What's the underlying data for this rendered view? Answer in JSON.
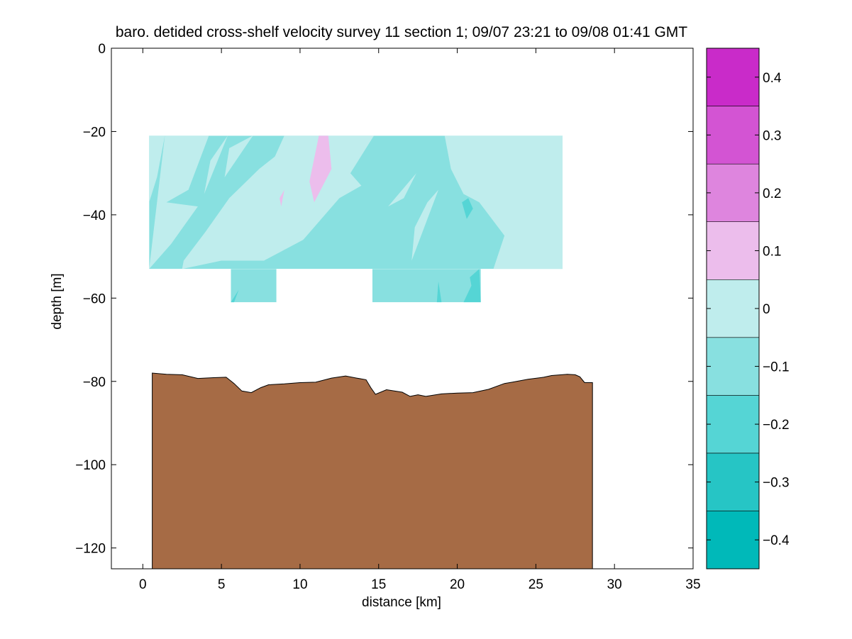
{
  "chart_data": {
    "type": "contour",
    "title": "baro. detided cross-shelf velocity survey 11 section 1; 09/07 23:21 to 09/08 01:41 GMT",
    "xlabel": "distance [km]",
    "ylabel": "depth [m]",
    "xlim": [
      -2,
      35
    ],
    "ylim": [
      -125,
      0
    ],
    "xticks": [
      0,
      5,
      10,
      15,
      20,
      25,
      30,
      35
    ],
    "yticks": [
      0,
      -20,
      -40,
      -60,
      -80,
      -100,
      -120
    ],
    "grid": false,
    "colorbar": {
      "range": [
        -0.45,
        0.45
      ],
      "levels": [
        -0.45,
        -0.35,
        -0.25,
        -0.15,
        -0.05,
        0.05,
        0.15,
        0.25,
        0.35,
        0.45
      ],
      "colors": [
        "#00b9b9",
        "#26c5c5",
        "#55d5d5",
        "#88e0e0",
        "#bfeded",
        "#ecbdec",
        "#de85de",
        "#d354d3",
        "#c92bc9",
        "#bf00bf"
      ],
      "ticks": [
        -0.4,
        -0.3,
        -0.2,
        -0.1,
        0,
        0.1,
        0.2,
        0.3,
        0.4
      ],
      "tick_labels": [
        "−0.4",
        "−0.3",
        "−0.2",
        "−0.1",
        "0",
        "0.1",
        "0.2",
        "0.3",
        "0.4"
      ]
    },
    "velocity_section": {
      "upper_block": {
        "x": [
          0.4,
          26.7
        ],
        "depth": [
          -21,
          -53
        ]
      },
      "lower_blocks": [
        {
          "x": [
            5.6,
            8.5
          ],
          "depth": [
            -53,
            -61
          ]
        },
        {
          "x": [
            14.6,
            21.5
          ],
          "depth": [
            -53,
            -61
          ]
        }
      ],
      "positive_regions": [
        [
          [
            0.4,
            -21
          ],
          [
            1.4,
            -21
          ],
          [
            0.9,
            -31
          ],
          [
            0.4,
            -37
          ]
        ],
        [
          [
            1.4,
            -21
          ],
          [
            4.2,
            -21
          ],
          [
            2.9,
            -34
          ],
          [
            1.5,
            -37
          ],
          [
            3.5,
            -38
          ],
          [
            1.8,
            -47
          ],
          [
            0.4,
            -53
          ]
        ],
        [
          [
            4.3,
            -27
          ],
          [
            5.4,
            -21
          ],
          [
            3.9,
            -35
          ]
        ],
        [
          [
            5.5,
            -24
          ],
          [
            7.0,
            -21
          ],
          [
            5.2,
            -31
          ]
        ],
        [
          [
            9.0,
            -21
          ],
          [
            14.7,
            -21
          ],
          [
            13.2,
            -30
          ],
          [
            13.9,
            -33
          ],
          [
            12.5,
            -36
          ],
          [
            10.2,
            -46
          ],
          [
            7.7,
            -51
          ],
          [
            5.0,
            -51
          ],
          [
            2.5,
            -53
          ],
          [
            2.6,
            -51
          ],
          [
            4.0,
            -44
          ],
          [
            5.5,
            -36
          ],
          [
            7.4,
            -29
          ],
          [
            8.4,
            -26
          ]
        ],
        [
          [
            15.6,
            -38
          ],
          [
            17.4,
            -30
          ],
          [
            16.6,
            -36
          ]
        ],
        [
          [
            19.2,
            -21
          ],
          [
            26.7,
            -21
          ],
          [
            26.7,
            -53
          ],
          [
            22.3,
            -53
          ],
          [
            23.0,
            -45
          ],
          [
            21.4,
            -37
          ],
          [
            20.4,
            -35
          ],
          [
            19.6,
            -29
          ]
        ],
        [
          [
            18.1,
            -37
          ],
          [
            18.8,
            -34
          ],
          [
            17.1,
            -51
          ],
          [
            17.3,
            -43
          ]
        ]
      ],
      "level_0_1_regions": [
        [
          [
            11.2,
            -21
          ],
          [
            11.8,
            -21
          ],
          [
            12.0,
            -29
          ],
          [
            10.9,
            -37
          ],
          [
            10.6,
            -32
          ]
        ],
        [
          [
            8.7,
            -36
          ],
          [
            9.0,
            -34
          ],
          [
            8.8,
            -38
          ]
        ]
      ],
      "negative_patches": [
        {
          "points": [
            [
              20.3,
              -37
            ],
            [
              20.7,
              -36
            ],
            [
              21.0,
              -38.5
            ],
            [
              20.6,
              -41
            ]
          ],
          "level": -0.2
        },
        {
          "points": [
            [
              5.6,
              -61
            ],
            [
              6.1,
              -58
            ],
            [
              5.8,
              -61
            ]
          ],
          "level": -0.2
        },
        {
          "points": [
            [
              18.7,
              -61
            ],
            [
              18.8,
              -56
            ],
            [
              19.0,
              -61
            ]
          ],
          "level": -0.2
        },
        {
          "points": [
            [
              20.8,
              -55
            ],
            [
              21.4,
              -53
            ],
            [
              21.5,
              -61
            ],
            [
              20.4,
              -61
            ],
            [
              20.9,
              -57
            ]
          ],
          "level": -0.2
        }
      ]
    },
    "bathymetry": {
      "color": "#a66b45",
      "x": [
        0.6,
        1.5,
        2.5,
        3.5,
        4.5,
        5.3,
        5.8,
        6.3,
        6.9,
        7.5,
        8.0,
        9.0,
        10.0,
        11.0,
        12.0,
        12.9,
        13.6,
        14.2,
        14.5,
        14.8,
        15.5,
        16.5,
        17.0,
        17.5,
        18.0,
        19.0,
        20.0,
        21.0,
        22.0,
        23.0,
        23.5,
        24.5,
        25.5,
        26.0,
        27.0,
        27.5,
        27.8,
        28.1,
        28.6
      ],
      "depth": [
        -78,
        -78.3,
        -78.4,
        -79.3,
        -79.1,
        -79.0,
        -80.5,
        -82.3,
        -82.7,
        -81.5,
        -80.8,
        -80.6,
        -80.3,
        -80.2,
        -79.2,
        -78.7,
        -79.2,
        -79.6,
        -81.5,
        -83.1,
        -82.0,
        -82.6,
        -83.6,
        -83.2,
        -83.6,
        -83.0,
        -82.8,
        -82.7,
        -81.9,
        -80.5,
        -80.2,
        -79.5,
        -79.0,
        -78.6,
        -78.3,
        -78.4,
        -78.9,
        -80.3,
        -80.3
      ]
    }
  }
}
